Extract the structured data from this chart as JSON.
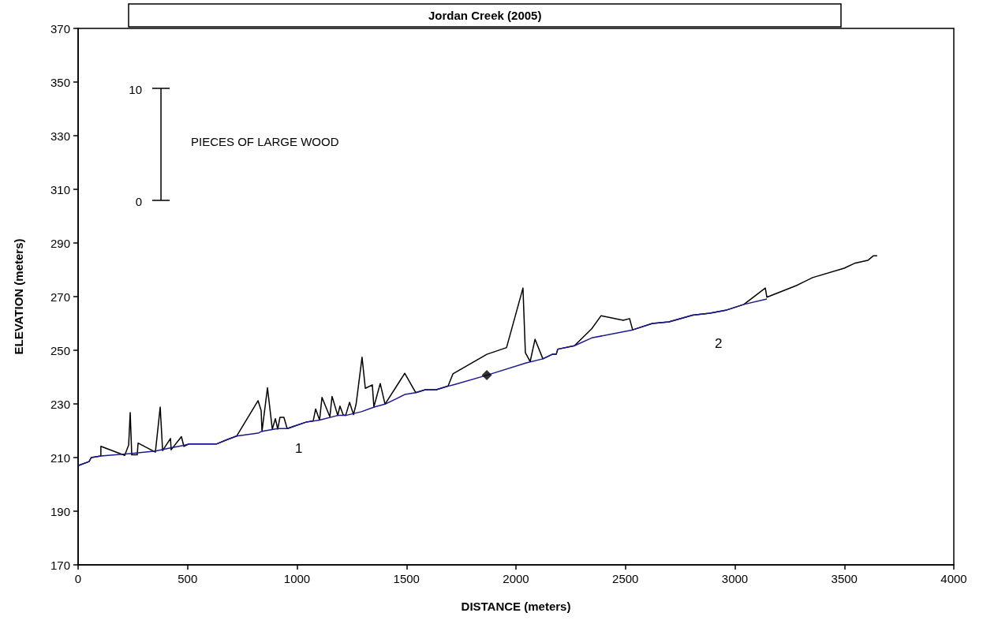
{
  "chart_data": {
    "type": "line",
    "title": "Jordan Creek (2005)",
    "xlabel": "DISTANCE (meters)",
    "ylabel": "ELEVATION (meters)",
    "xlim": [
      0,
      4000
    ],
    "xticks": [
      0,
      500,
      1000,
      1500,
      2000,
      2500,
      3000,
      3500,
      4000
    ],
    "ylim": [
      170,
      370
    ],
    "yticks": [
      170,
      190,
      210,
      230,
      250,
      270,
      290,
      310,
      330,
      350,
      370
    ],
    "grid": false,
    "marker": "none",
    "line_style": "solid",
    "annotations": [
      "10",
      "0",
      "PIECES OF LARGE WOOD",
      "1",
      "2"
    ],
    "series": [
      {
        "color": "#000000",
        "x": [
          0,
          50,
          60,
          104,
          104,
          213,
          231,
          238,
          245,
          270,
          274,
          353,
          375,
          386,
          422,
          425,
          472,
          483,
          508,
          634,
          681,
          724,
          822,
          836,
          840,
          865,
          887,
          901,
          912,
          922,
          940,
          955,
          984,
          1041,
          1074,
          1085,
          1103,
          1114,
          1150,
          1160,
          1186,
          1196,
          1211,
          1222,
          1240,
          1258,
          1270,
          1297,
          1312,
          1344,
          1351,
          1380,
          1402,
          1492,
          1542,
          1586,
          1636,
          1690,
          1712,
          1867,
          1957,
          2032,
          2043,
          2065,
          2087,
          2123,
          2166,
          2184,
          2191,
          2267,
          2346,
          2389,
          2490,
          2519,
          2533,
          2623,
          2699,
          2807,
          2886,
          2958,
          3041,
          3139,
          3146,
          3283,
          3355,
          3499,
          3546,
          3607,
          3632,
          3650
        ],
        "values": [
          207,
          208.5,
          210,
          210.6,
          214.2,
          210.8,
          214.7,
          226.8,
          211,
          211,
          215.4,
          212,
          228.8,
          212.6,
          217.1,
          212.9,
          217.8,
          214.2,
          215.1,
          215.1,
          216.7,
          218,
          231.2,
          227.6,
          219.8,
          236,
          220.6,
          224.5,
          220.6,
          225,
          225,
          220.8,
          221.6,
          223.2,
          223.7,
          228.1,
          224,
          232.4,
          225.2,
          232.8,
          225.7,
          229.2,
          225.9,
          225.7,
          230.6,
          226,
          230,
          247.4,
          235.8,
          237.1,
          228.9,
          237.6,
          229.9,
          241.4,
          234.2,
          235.3,
          235.3,
          236.7,
          241.2,
          248.5,
          251,
          273.2,
          249.1,
          245.8,
          254.1,
          246.8,
          248.5,
          248.5,
          250.4,
          251.7,
          258,
          262.9,
          261.2,
          261.8,
          257.6,
          260,
          260.6,
          263.1,
          263.8,
          264.9,
          267.1,
          273.2,
          269.8,
          274.2,
          277.1,
          280.6,
          282.4,
          283.5,
          285.2,
          285.2
        ]
      },
      {
        "color": "#1a1a8c",
        "x": [
          0,
          50,
          60,
          104,
          238,
          353,
          418,
          479,
          508,
          634,
          681,
          724,
          822,
          840,
          912,
          958,
          984,
          1041,
          1103,
          1186,
          1222,
          1294,
          1355,
          1402,
          1445,
          1492,
          1542,
          1586,
          1636,
          1686,
          1722,
          1867,
          2047,
          2123,
          2166,
          2184,
          2191,
          2267,
          2346,
          2533,
          2623,
          2699,
          2807,
          2886,
          2958,
          3041,
          3146
        ],
        "values": [
          207,
          208.5,
          210,
          210.6,
          211.5,
          212.4,
          213.5,
          214.5,
          215.1,
          215.1,
          216.7,
          218,
          219.1,
          219.8,
          220.8,
          220.8,
          221.6,
          223.2,
          224,
          225.7,
          225.7,
          227.1,
          228.9,
          229.9,
          231.6,
          233.5,
          234.2,
          235.3,
          235.3,
          236.5,
          237.3,
          240.7,
          245.3,
          246.8,
          248.5,
          248.5,
          250.4,
          251.7,
          254.6,
          257.6,
          260,
          260.6,
          263.1,
          263.8,
          264.9,
          267.1,
          269.1
        ]
      },
      {
        "type": "scatter",
        "marker": "diamond",
        "color": "#000000",
        "x": [
          1867
        ],
        "values": [
          240.7
        ]
      }
    ]
  }
}
